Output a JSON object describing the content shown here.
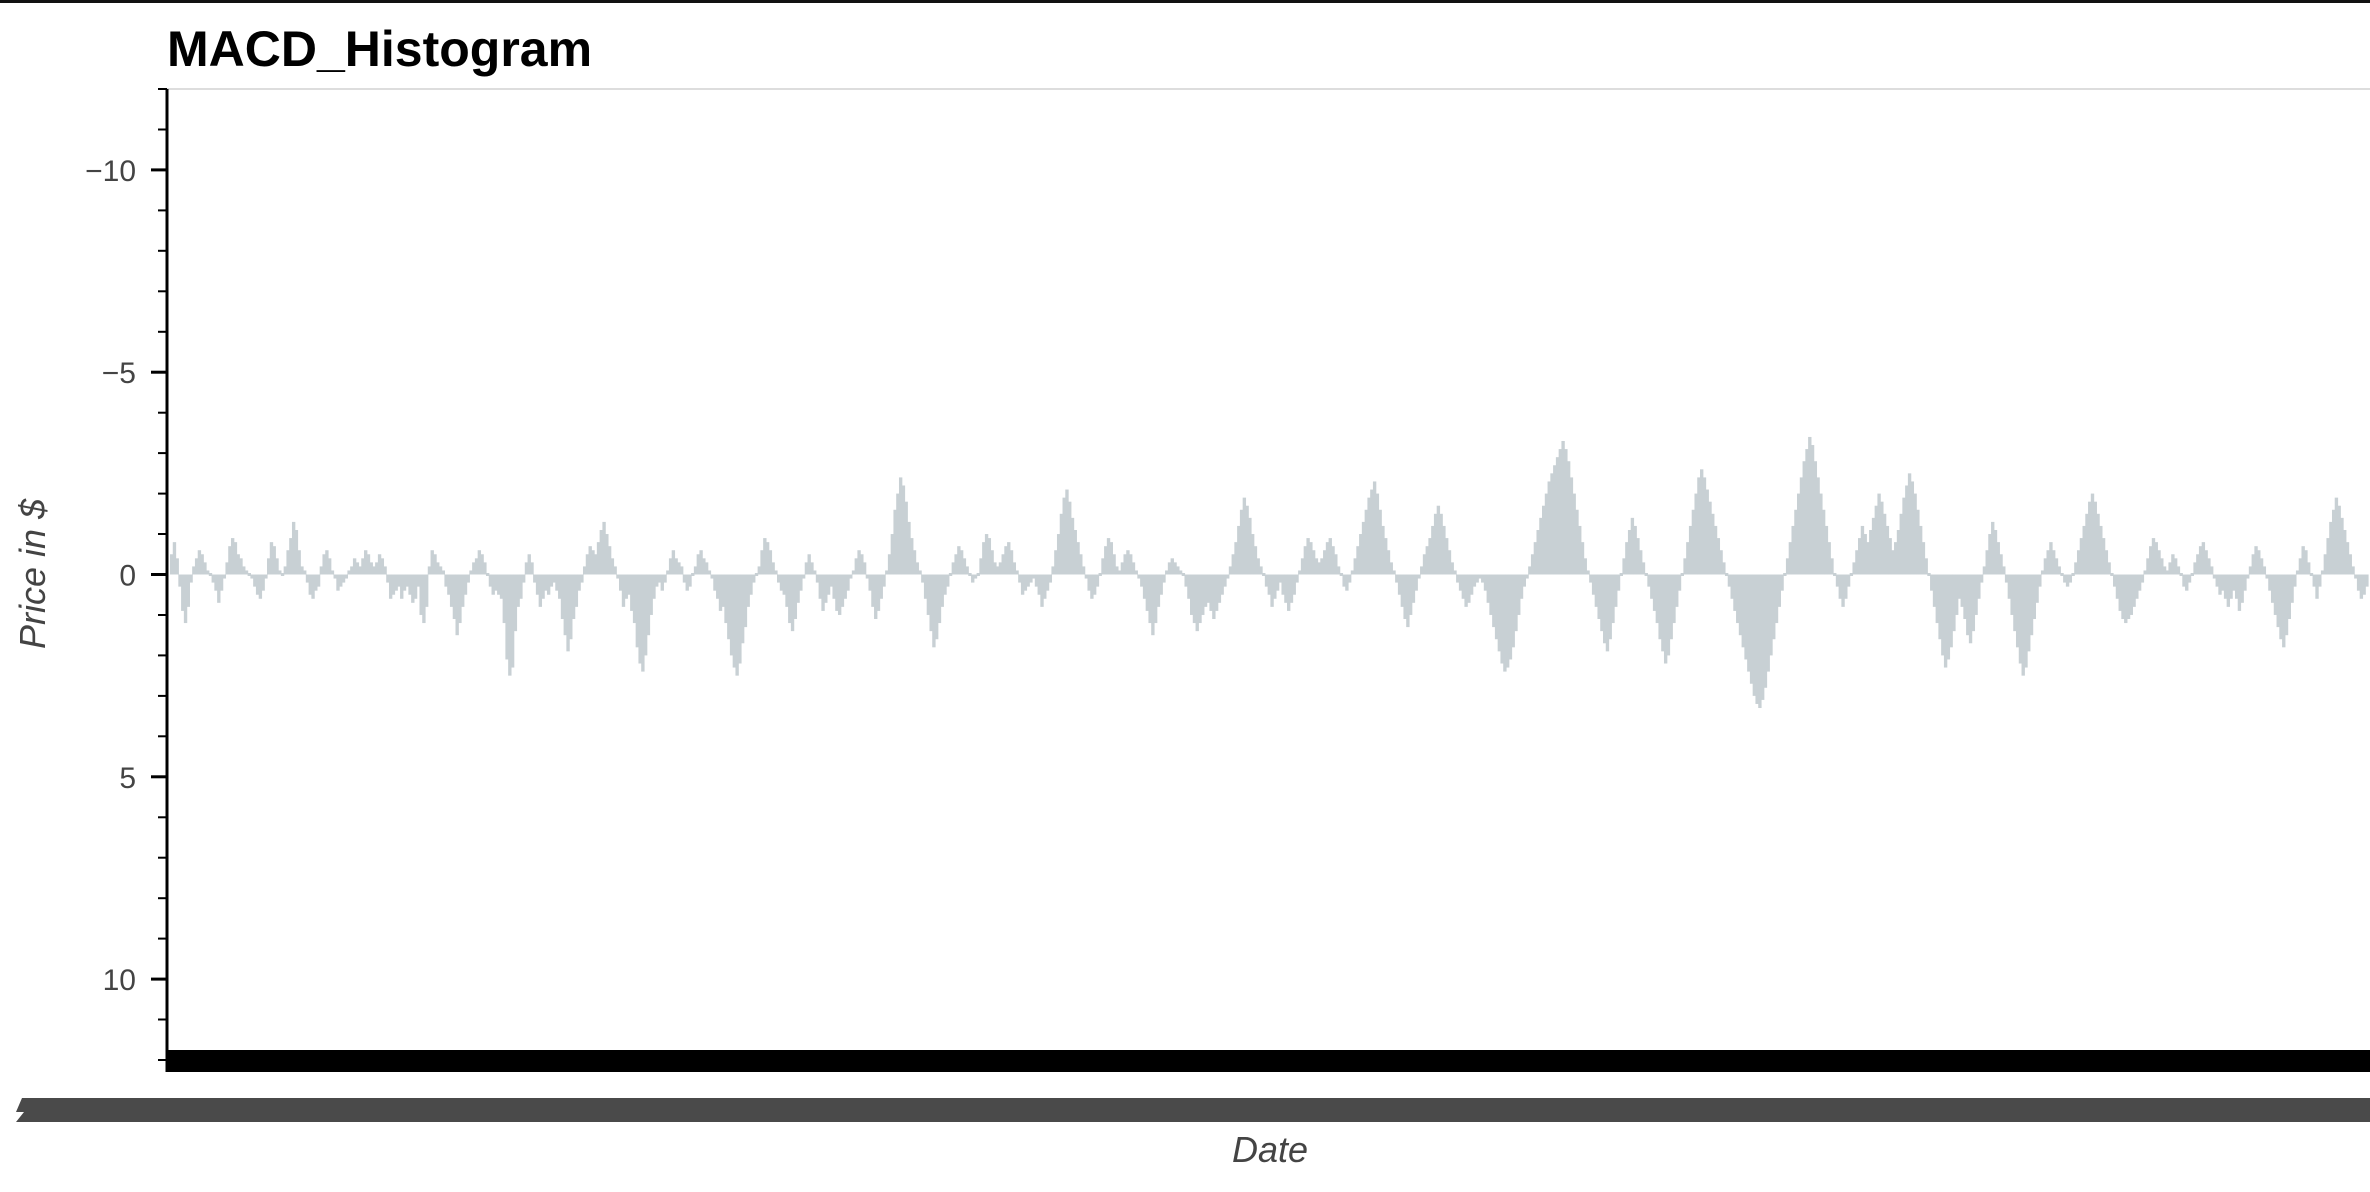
{
  "chart_data": {
    "type": "area",
    "title": "MACD_Histogram",
    "xlabel": "Date",
    "ylabel": "Price in $",
    "ylim": [
      12,
      -12
    ],
    "y_inverted": true,
    "yticks": [
      -10,
      -5,
      0,
      5,
      10
    ],
    "ytick_labels": [
      "−10",
      "−5",
      "0",
      "5",
      "10"
    ],
    "grid": false,
    "color": "#c8d0d4",
    "series": [
      {
        "values": [
          -0.5,
          -0.8,
          -0.4,
          0.3,
          0.9,
          1.2,
          0.8,
          0.2,
          -0.2,
          -0.4,
          -0.6,
          -0.5,
          -0.3,
          -0.1,
          0.0,
          0.2,
          0.4,
          0.7,
          0.4,
          0.1,
          -0.3,
          -0.7,
          -0.9,
          -0.8,
          -0.5,
          -0.4,
          -0.2,
          -0.1,
          0.0,
          0.1,
          0.3,
          0.5,
          0.6,
          0.4,
          0.1,
          -0.4,
          -0.8,
          -0.7,
          -0.4,
          -0.1,
          0.0,
          -0.2,
          -0.6,
          -0.9,
          -1.3,
          -1.1,
          -0.6,
          -0.2,
          -0.1,
          0.2,
          0.5,
          0.6,
          0.4,
          0.3,
          -0.2,
          -0.5,
          -0.6,
          -0.4,
          -0.1,
          0.1,
          0.4,
          0.3,
          0.2,
          0.1,
          -0.1,
          -0.2,
          -0.4,
          -0.3,
          -0.2,
          -0.4,
          -0.6,
          -0.5,
          -0.3,
          -0.2,
          -0.3,
          -0.5,
          -0.4,
          -0.2,
          0.2,
          0.6,
          0.5,
          0.4,
          0.3,
          0.6,
          0.4,
          0.3,
          0.5,
          0.7,
          0.6,
          0.3,
          1.0,
          1.2,
          0.8,
          -0.2,
          -0.6,
          -0.5,
          -0.3,
          -0.2,
          -0.1,
          0.3,
          0.5,
          0.8,
          1.1,
          1.5,
          1.2,
          0.8,
          0.5,
          0.2,
          -0.1,
          -0.3,
          -0.4,
          -0.6,
          -0.5,
          -0.3,
          0.0,
          0.3,
          0.5,
          0.4,
          0.5,
          0.6,
          1.2,
          2.1,
          2.5,
          2.3,
          1.4,
          0.8,
          0.6,
          0.2,
          -0.3,
          -0.5,
          -0.3,
          0.2,
          0.5,
          0.8,
          0.6,
          0.4,
          0.5,
          0.3,
          0.2,
          0.4,
          0.6,
          1.1,
          1.5,
          1.9,
          1.6,
          1.1,
          0.8,
          0.4,
          0.2,
          -0.2,
          -0.5,
          -0.7,
          -0.6,
          -0.5,
          -0.8,
          -1.1,
          -1.3,
          -1.0,
          -0.7,
          -0.4,
          -0.2,
          0.1,
          0.4,
          0.8,
          0.6,
          0.5,
          0.9,
          1.2,
          1.8,
          2.2,
          2.4,
          2.0,
          1.5,
          1.0,
          0.6,
          0.3,
          0.2,
          0.4,
          0.2,
          -0.1,
          -0.4,
          -0.6,
          -0.4,
          -0.3,
          -0.2,
          0.2,
          0.4,
          0.3,
          0.0,
          -0.2,
          -0.5,
          -0.6,
          -0.4,
          -0.3,
          -0.1,
          0.1,
          0.4,
          0.6,
          0.9,
          0.8,
          1.2,
          1.6,
          2.0,
          2.3,
          2.5,
          2.2,
          1.7,
          1.3,
          0.8,
          0.5,
          0.2,
          0.0,
          -0.2,
          -0.6,
          -0.9,
          -0.8,
          -0.6,
          -0.3,
          -0.1,
          0.2,
          0.4,
          0.5,
          0.8,
          1.2,
          1.4,
          1.1,
          0.7,
          0.4,
          0.1,
          -0.3,
          -0.5,
          -0.3,
          -0.1,
          0.2,
          0.6,
          0.9,
          0.7,
          0.5,
          0.3,
          0.6,
          0.9,
          1.0,
          0.8,
          0.6,
          0.4,
          0.1,
          -0.1,
          -0.4,
          -0.6,
          -0.5,
          -0.3,
          0.1,
          0.4,
          0.8,
          1.1,
          0.9,
          0.6,
          0.3,
          -0.1,
          -0.5,
          -1.0,
          -1.6,
          -2.0,
          -2.4,
          -2.2,
          -1.8,
          -1.3,
          -0.9,
          -0.6,
          -0.3,
          -0.1,
          0.2,
          0.6,
          1.0,
          1.4,
          1.8,
          1.6,
          1.2,
          0.8,
          0.5,
          0.3,
          0.0,
          -0.3,
          -0.5,
          -0.7,
          -0.6,
          -0.4,
          -0.2,
          0.0,
          0.2,
          0.1,
          0.0,
          -0.4,
          -0.8,
          -1.0,
          -0.9,
          -0.6,
          -0.3,
          -0.2,
          -0.3,
          -0.5,
          -0.7,
          -0.8,
          -0.6,
          -0.3,
          -0.1,
          0.2,
          0.5,
          0.4,
          0.3,
          0.2,
          0.1,
          0.3,
          0.5,
          0.8,
          0.6,
          0.4,
          0.2,
          -0.2,
          -0.6,
          -1.0,
          -1.5,
          -1.9,
          -2.1,
          -1.8,
          -1.4,
          -1.1,
          -0.8,
          -0.5,
          -0.2,
          0.1,
          0.4,
          0.6,
          0.5,
          0.3,
          0.0,
          -0.4,
          -0.7,
          -0.9,
          -0.8,
          -0.5,
          -0.2,
          -0.1,
          -0.3,
          -0.5,
          -0.6,
          -0.5,
          -0.3,
          -0.1,
          0.1,
          0.3,
          0.6,
          0.9,
          1.2,
          1.5,
          1.2,
          0.8,
          0.5,
          0.2,
          -0.1,
          -0.3,
          -0.4,
          -0.3,
          -0.2,
          -0.1,
          0.0,
          0.3,
          0.6,
          1.0,
          1.2,
          1.4,
          1.2,
          1.0,
          0.8,
          0.7,
          0.9,
          1.1,
          0.9,
          0.7,
          0.5,
          0.3,
          0.1,
          -0.2,
          -0.5,
          -0.8,
          -1.2,
          -1.6,
          -1.9,
          -1.7,
          -1.4,
          -1.0,
          -0.7,
          -0.4,
          -0.2,
          0.0,
          0.3,
          0.5,
          0.8,
          0.6,
          0.4,
          0.2,
          0.5,
          0.7,
          0.9,
          0.7,
          0.5,
          0.2,
          -0.1,
          -0.4,
          -0.7,
          -0.9,
          -0.8,
          -0.6,
          -0.4,
          -0.3,
          -0.4,
          -0.6,
          -0.8,
          -0.9,
          -0.7,
          -0.5,
          -0.2,
          0.0,
          0.3,
          0.4,
          0.2,
          -0.1,
          -0.4,
          -0.7,
          -1.0,
          -1.3,
          -1.6,
          -1.9,
          -2.1,
          -2.3,
          -2.0,
          -1.6,
          -1.2,
          -0.9,
          -0.6,
          -0.3,
          -0.1,
          0.2,
          0.5,
          0.8,
          1.1,
          1.3,
          1.0,
          0.7,
          0.4,
          0.1,
          -0.2,
          -0.5,
          -0.7,
          -0.9,
          -1.2,
          -1.5,
          -1.7,
          -1.5,
          -1.2,
          -0.9,
          -0.6,
          -0.3,
          -0.1,
          0.2,
          0.4,
          0.6,
          0.8,
          0.7,
          0.5,
          0.3,
          0.2,
          0.1,
          0.2,
          0.4,
          0.7,
          1.0,
          1.3,
          1.6,
          1.9,
          2.2,
          2.4,
          2.3,
          2.1,
          1.8,
          1.4,
          1.0,
          0.6,
          0.3,
          0.1,
          -0.2,
          -0.5,
          -0.8,
          -1.1,
          -1.4,
          -1.7,
          -2.0,
          -2.3,
          -2.5,
          -2.7,
          -2.9,
          -3.1,
          -3.3,
          -3.1,
          -2.8,
          -2.4,
          -2.0,
          -1.6,
          -1.2,
          -0.8,
          -0.4,
          -0.1,
          0.2,
          0.5,
          0.8,
          1.1,
          1.4,
          1.7,
          1.9,
          1.6,
          1.2,
          0.8,
          0.4,
          0.0,
          -0.4,
          -0.8,
          -1.1,
          -1.4,
          -1.2,
          -0.9,
          -0.6,
          -0.3,
          0.0,
          0.3,
          0.6,
          0.9,
          1.2,
          1.6,
          1.9,
          2.2,
          2.0,
          1.6,
          1.2,
          0.8,
          0.4,
          0.0,
          -0.4,
          -0.8,
          -1.2,
          -1.6,
          -2.0,
          -2.4,
          -2.6,
          -2.4,
          -2.1,
          -1.8,
          -1.5,
          -1.2,
          -0.9,
          -0.6,
          -0.3,
          0.0,
          0.3,
          0.6,
          0.9,
          1.2,
          1.5,
          1.8,
          2.1,
          2.4,
          2.7,
          3.0,
          3.2,
          3.3,
          3.1,
          2.8,
          2.4,
          2.0,
          1.6,
          1.2,
          0.8,
          0.4,
          0.0,
          -0.4,
          -0.8,
          -1.2,
          -1.6,
          -2.0,
          -2.4,
          -2.8,
          -3.1,
          -3.4,
          -3.2,
          -2.8,
          -2.4,
          -2.0,
          -1.6,
          -1.2,
          -0.8,
          -0.4,
          0.0,
          0.3,
          0.6,
          0.8,
          0.6,
          0.3,
          0.0,
          -0.3,
          -0.6,
          -0.9,
          -1.2,
          -1.0,
          -0.8,
          -1.1,
          -1.4,
          -1.7,
          -2.0,
          -1.8,
          -1.5,
          -1.2,
          -0.9,
          -0.6,
          -0.8,
          -1.1,
          -1.5,
          -1.9,
          -2.2,
          -2.5,
          -2.3,
          -2.0,
          -1.6,
          -1.2,
          -0.8,
          -0.4,
          0.0,
          0.4,
          0.8,
          1.2,
          1.6,
          2.0,
          2.3,
          2.1,
          1.8,
          1.4,
          1.0,
          0.6,
          0.8,
          1.1,
          1.5,
          1.7,
          1.4,
          1.0,
          0.6,
          0.2,
          -0.2,
          -0.6,
          -1.0,
          -1.3,
          -1.1,
          -0.8,
          -0.5,
          -0.2,
          0.2,
          0.6,
          1.0,
          1.4,
          1.8,
          2.2,
          2.5,
          2.3,
          1.9,
          1.5,
          1.1,
          0.7,
          0.3,
          -0.1,
          -0.4,
          -0.6,
          -0.8,
          -0.6,
          -0.4,
          -0.2,
          0.0,
          0.2,
          0.3,
          0.2,
          0.0,
          -0.3,
          -0.6,
          -0.9,
          -1.2,
          -1.5,
          -1.8,
          -2.0,
          -1.8,
          -1.5,
          -1.2,
          -0.9,
          -0.6,
          -0.3,
          0.0,
          0.3,
          0.6,
          0.9,
          1.1,
          1.2,
          1.1,
          1.0,
          0.8,
          0.6,
          0.4,
          0.2,
          -0.1,
          -0.4,
          -0.7,
          -0.9,
          -0.8,
          -0.6,
          -0.4,
          -0.2,
          -0.1,
          -0.3,
          -0.5,
          -0.4,
          -0.2,
          0.0,
          0.3,
          0.4,
          0.2,
          0.0,
          -0.3,
          -0.5,
          -0.7,
          -0.8,
          -0.6,
          -0.4,
          -0.2,
          0.1,
          0.3,
          0.5,
          0.4,
          0.6,
          0.8,
          0.6,
          0.4,
          0.6,
          0.9,
          0.7,
          0.4,
          0.1,
          -0.2,
          -0.5,
          -0.7,
          -0.6,
          -0.4,
          -0.2,
          0.1,
          0.4,
          0.7,
          1.0,
          1.3,
          1.6,
          1.8,
          1.5,
          1.1,
          0.7,
          0.3,
          -0.1,
          -0.4,
          -0.7,
          -0.6,
          -0.3,
          0.0,
          0.3,
          0.6,
          0.3,
          -0.1,
          -0.5,
          -0.9,
          -1.3,
          -1.6,
          -1.9,
          -1.7,
          -1.4,
          -1.1,
          -0.8,
          -0.5,
          -0.2,
          0.1,
          0.4,
          0.6,
          0.5,
          0.3
        ]
      }
    ]
  }
}
